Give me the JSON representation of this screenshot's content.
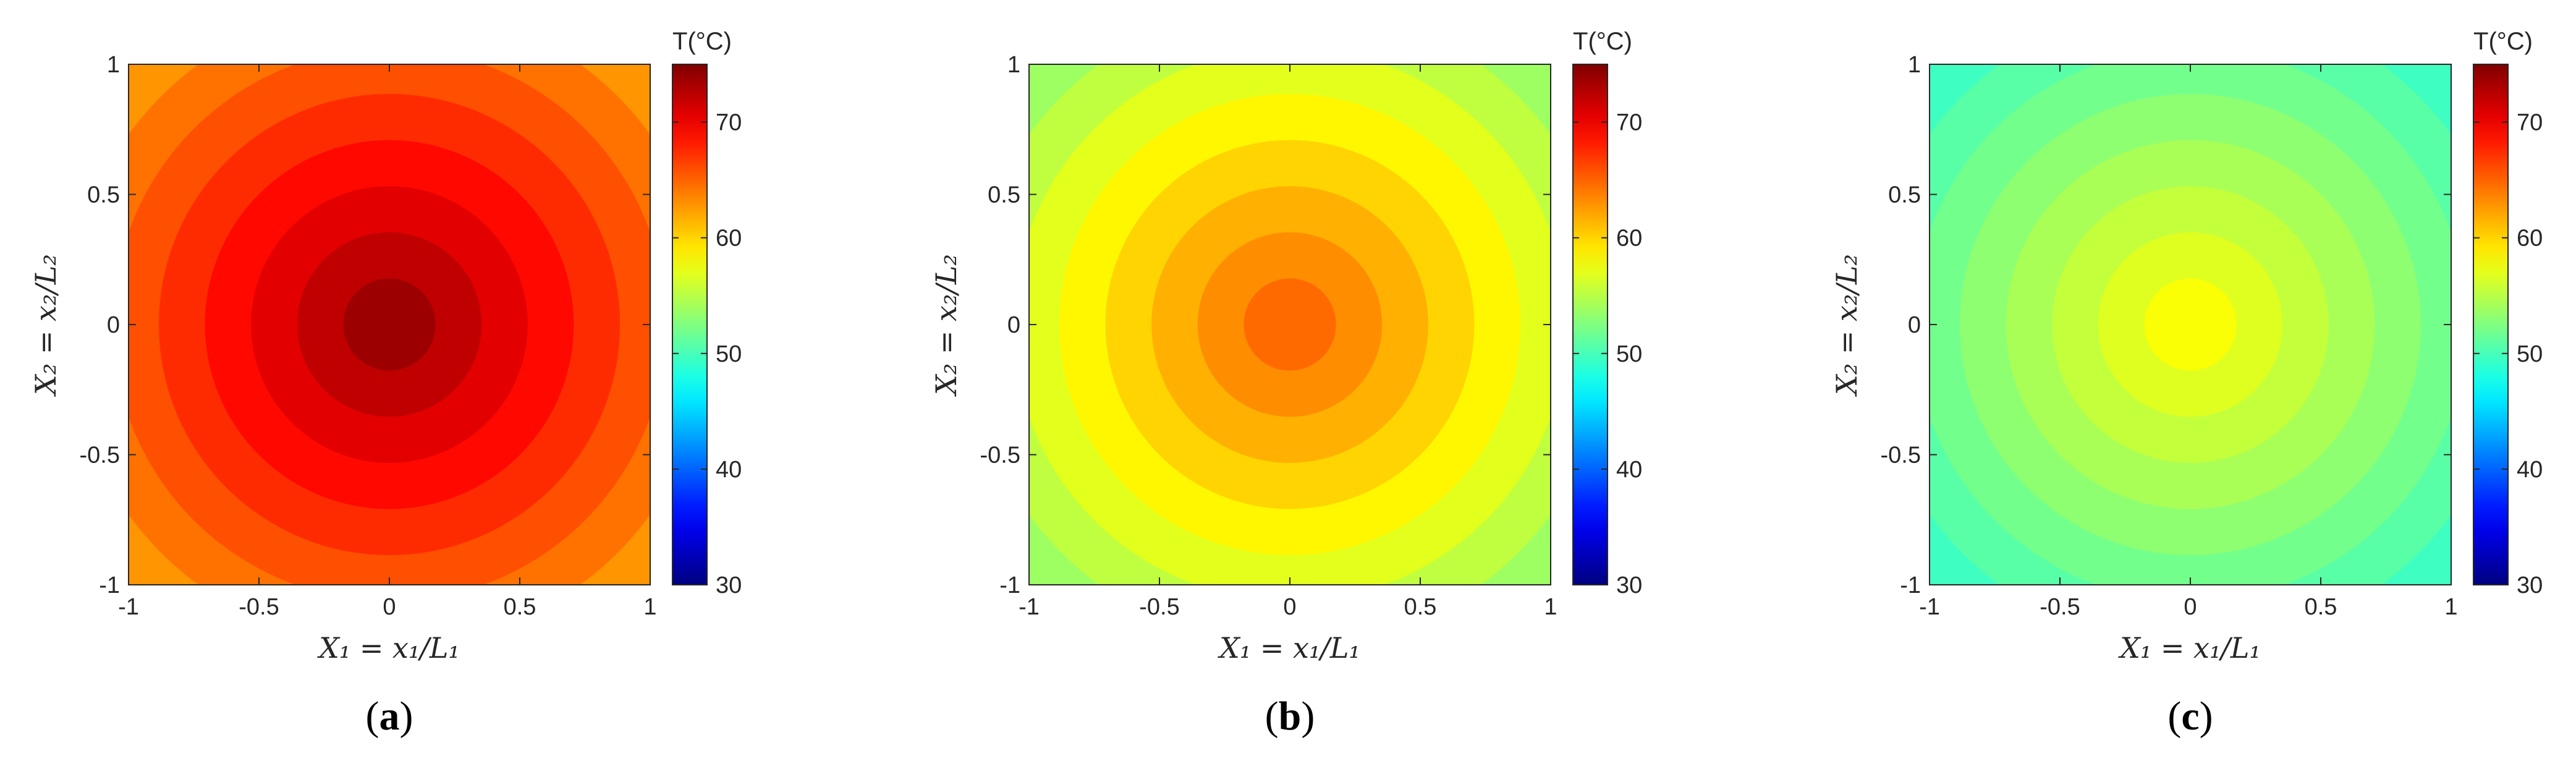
{
  "chart_data": [
    {
      "type": "heatmap",
      "panel_label": "a",
      "xlabel": "X₁ = x₁/L₁",
      "ylabel": "X₂ = x₂/L₂",
      "xlim": [
        -1,
        1
      ],
      "ylim": [
        -1,
        1
      ],
      "x_ticks": [
        "-1",
        "-0.5",
        "0",
        "0.5",
        "1"
      ],
      "y_ticks": [
        "-1",
        "-0.5",
        "0",
        "0.5",
        "1"
      ],
      "colorbar": {
        "title": "T(°C)",
        "min": 30,
        "max": 75,
        "ticks": [
          "30",
          "40",
          "50",
          "60",
          "70"
        ],
        "colormap": "jet"
      },
      "field": {
        "shape": "radial",
        "center": [
          0,
          0
        ],
        "center_value": 74.5,
        "corner_value": 62,
        "contour_levels": 8
      }
    },
    {
      "type": "heatmap",
      "panel_label": "b",
      "xlabel": "X₁ = x₁/L₁",
      "ylabel": "X₂ = x₂/L₂",
      "xlim": [
        -1,
        1
      ],
      "ylim": [
        -1,
        1
      ],
      "x_ticks": [
        "-1",
        "-0.5",
        "0",
        "0.5",
        "1"
      ],
      "y_ticks": [
        "-1",
        "-0.5",
        "0",
        "0.5",
        "1"
      ],
      "colorbar": {
        "title": "T(°C)",
        "min": 30,
        "max": 75,
        "ticks": [
          "30",
          "40",
          "50",
          "60",
          "70"
        ],
        "colormap": "jet"
      },
      "field": {
        "shape": "radial",
        "center": [
          0,
          0
        ],
        "center_value": 65.5,
        "corner_value": 53,
        "contour_levels": 8
      }
    },
    {
      "type": "heatmap",
      "panel_label": "c",
      "xlabel": "X₁ = x₁/L₁",
      "ylabel": "X₂ = x₂/L₂",
      "xlim": [
        -1,
        1
      ],
      "ylim": [
        -1,
        1
      ],
      "x_ticks": [
        "-1",
        "-0.5",
        "0",
        "0.5",
        "1"
      ],
      "y_ticks": [
        "-1",
        "-0.5",
        "0",
        "0.5",
        "1"
      ],
      "colorbar": {
        "title": "T(°C)",
        "min": 30,
        "max": 75,
        "ticks": [
          "30",
          "40",
          "50",
          "60",
          "70"
        ],
        "colormap": "jet"
      },
      "field": {
        "shape": "radial",
        "center": [
          0,
          0
        ],
        "center_value": 58.5,
        "corner_value": 49,
        "contour_levels": 8
      }
    }
  ]
}
